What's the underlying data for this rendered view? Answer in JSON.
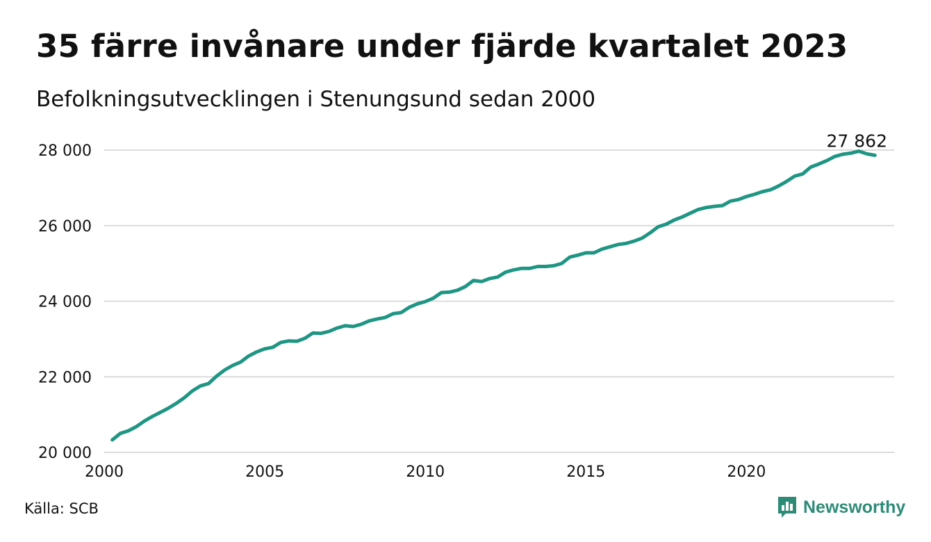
{
  "title": "35 färre invånare under fjärde kvartalet 2023",
  "subtitle": "Befolkningsutvecklingen i Stenungsund sedan 2000",
  "source": "Källa: SCB",
  "brand": {
    "name": "Newsworthy",
    "icon": "newsworthy-logo-icon",
    "color": "#2e8b78"
  },
  "colors": {
    "line": "#1f9583",
    "grid": "#dcdcdc"
  },
  "chart_data": {
    "type": "line",
    "title": "35 färre invånare under fjärde kvartalet 2023",
    "subtitle": "Befolkningsutvecklingen i Stenungsund sedan 2000",
    "xlabel": "",
    "ylabel": "",
    "xlim": [
      2000,
      2024.6
    ],
    "ylim": [
      20000,
      28000
    ],
    "x_ticks": [
      2000,
      2005,
      2010,
      2015,
      2020
    ],
    "y_ticks": [
      20000,
      22000,
      24000,
      26000,
      28000
    ],
    "y_tick_labels": [
      "20 000",
      "22 000",
      "24 000",
      "26 000",
      "28 000"
    ],
    "grid": true,
    "end_label": "27 862",
    "series": [
      {
        "x": [
          2000.25,
          2000.5,
          2000.75,
          2001,
          2001.25,
          2001.5,
          2001.75,
          2002,
          2002.25,
          2002.5,
          2002.75,
          2003,
          2003.25,
          2003.5,
          2003.75,
          2004,
          2004.25,
          2004.5,
          2004.75,
          2005,
          2005.25,
          2005.5,
          2005.75,
          2006,
          2006.25,
          2006.5,
          2006.75,
          2007,
          2007.25,
          2007.5,
          2007.75,
          2008,
          2008.25,
          2008.5,
          2008.75,
          2009,
          2009.25,
          2009.5,
          2009.75,
          2010,
          2010.25,
          2010.5,
          2010.75,
          2011,
          2011.25,
          2011.5,
          2011.75,
          2012,
          2012.25,
          2012.5,
          2012.75,
          2013,
          2013.25,
          2013.5,
          2013.75,
          2014,
          2014.25,
          2014.5,
          2014.75,
          2015,
          2015.25,
          2015.5,
          2015.75,
          2016,
          2016.25,
          2016.5,
          2016.75,
          2017,
          2017.25,
          2017.5,
          2017.75,
          2018,
          2018.25,
          2018.5,
          2018.75,
          2019,
          2019.25,
          2019.5,
          2019.75,
          2020,
          2020.25,
          2020.5,
          2020.75,
          2021,
          2021.25,
          2021.5,
          2021.75,
          2022,
          2022.25,
          2022.5,
          2022.75,
          2023,
          2023.25,
          2023.5,
          2023.75,
          2024
        ],
        "values": [
          20330,
          20500,
          20570,
          20680,
          20830,
          20950,
          21060,
          21170,
          21300,
          21450,
          21630,
          21760,
          21820,
          22020,
          22180,
          22300,
          22390,
          22550,
          22660,
          22740,
          22780,
          22910,
          22950,
          22940,
          23020,
          23160,
          23150,
          23200,
          23290,
          23350,
          23330,
          23390,
          23480,
          23530,
          23570,
          23670,
          23700,
          23840,
          23930,
          23990,
          24080,
          24230,
          24240,
          24290,
          24390,
          24550,
          24520,
          24600,
          24640,
          24770,
          24830,
          24870,
          24870,
          24920,
          24920,
          24940,
          25000,
          25170,
          25220,
          25280,
          25280,
          25380,
          25440,
          25500,
          25530,
          25590,
          25670,
          25810,
          25970,
          26040,
          26150,
          26230,
          26330,
          26430,
          26480,
          26510,
          26530,
          26650,
          26690,
          26770,
          26830,
          26900,
          26950,
          27050,
          27170,
          27310,
          27370,
          27550,
          27630,
          27720,
          27830,
          27890,
          27920,
          27970,
          27900,
          27862
        ]
      }
    ]
  }
}
